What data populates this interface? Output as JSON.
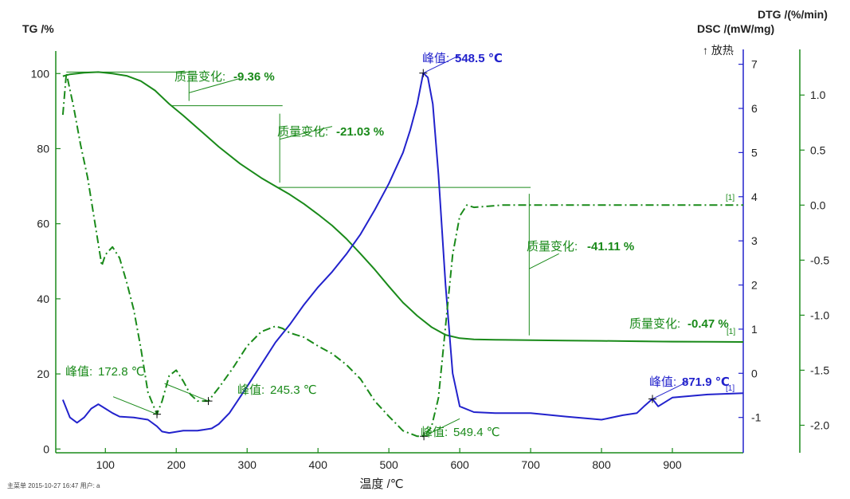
{
  "chart_data": {
    "type": "line",
    "title": "",
    "xlabel": "温度 /℃",
    "xlim": [
      30,
      1000
    ],
    "xticks": [
      100,
      200,
      300,
      400,
      500,
      600,
      700,
      800,
      900
    ],
    "y_left": {
      "label": "TG /%",
      "lim": [
        -1,
        106
      ],
      "ticks": [
        0,
        20,
        40,
        60,
        80,
        100
      ]
    },
    "y_dsc": {
      "label": "DSC /(mW/mg)",
      "exo_label": "↑ 放热",
      "lim": [
        -1.8,
        7.3
      ],
      "ticks": [
        -1,
        0,
        1,
        2,
        3,
        4,
        5,
        6,
        7
      ]
    },
    "y_dtg": {
      "label": "DTG /(%/min)",
      "lim": [
        -2.25,
        1.4
      ],
      "ticks": [
        "1.0",
        "0.5",
        "0.0",
        "-0.5",
        "-1.0",
        "-1.5",
        "-2.0"
      ]
    },
    "series": [
      {
        "axis": "tg",
        "color": "#1a8a1a",
        "style": "solid",
        "x": [
          40,
          50,
          70,
          90,
          110,
          130,
          150,
          170,
          190,
          210,
          230,
          260,
          290,
          320,
          340,
          360,
          380,
          400,
          420,
          440,
          460,
          480,
          500,
          520,
          540,
          560,
          580,
          600,
          620,
          650,
          700,
          750,
          800,
          850,
          900,
          1000
        ],
        "y": [
          99.3,
          99.8,
          100.2,
          100.4,
          100.0,
          99.4,
          98.0,
          95.5,
          91.9,
          88.8,
          85.5,
          80.5,
          76.0,
          72.2,
          70.0,
          67.8,
          65.3,
          62.5,
          59.5,
          56.0,
          52.0,
          47.8,
          43.3,
          39.0,
          35.5,
          32.5,
          30.4,
          29.5,
          29.2,
          29.1,
          29.0,
          28.9,
          28.8,
          28.7,
          28.6,
          28.5
        ]
      },
      {
        "axis": "dsc",
        "color": "#2222cc",
        "style": "solid",
        "x": [
          40,
          50,
          60,
          70,
          80,
          90,
          100,
          110,
          120,
          140,
          160,
          172.8,
          180,
          190,
          210,
          230,
          250,
          260,
          275,
          300,
          320,
          340,
          360,
          380,
          400,
          420,
          440,
          460,
          480,
          500,
          520,
          530,
          540,
          548.5,
          555,
          562,
          570,
          580,
          590,
          600,
          620,
          650,
          700,
          750,
          800,
          830,
          850,
          860,
          871.9,
          880,
          900,
          950,
          1000
        ],
        "y": [
          -0.6,
          -1.0,
          -1.12,
          -1.0,
          -0.8,
          -0.7,
          -0.8,
          -0.9,
          -0.98,
          -1.0,
          -1.05,
          -1.2,
          -1.32,
          -1.35,
          -1.3,
          -1.3,
          -1.25,
          -1.15,
          -0.9,
          -0.3,
          0.2,
          0.7,
          1.1,
          1.55,
          1.95,
          2.3,
          2.7,
          3.15,
          3.7,
          4.3,
          5.0,
          5.5,
          6.1,
          6.8,
          6.7,
          6.1,
          4.5,
          2.0,
          0.0,
          -0.75,
          -0.88,
          -0.9,
          -0.9,
          -0.98,
          -1.05,
          -0.95,
          -0.9,
          -0.75,
          -0.58,
          -0.75,
          -0.55,
          -0.48,
          -0.45
        ]
      },
      {
        "axis": "dtg",
        "color": "#1a8a1a",
        "style": "dashdot",
        "x": [
          40,
          45,
          55,
          65,
          75,
          85,
          95,
          100,
          110,
          120,
          130,
          140,
          150,
          160,
          172.8,
          180,
          190,
          200,
          210,
          220,
          230,
          245.3,
          260,
          280,
          300,
          320,
          340,
          350,
          360,
          370,
          380,
          400,
          420,
          440,
          460,
          480,
          500,
          520,
          540,
          549.4,
          560,
          570,
          580,
          590,
          600,
          610,
          620,
          640,
          660,
          700,
          750,
          800,
          850,
          900,
          950,
          1000
        ],
        "y": [
          0.82,
          1.2,
          0.9,
          0.55,
          0.25,
          -0.15,
          -0.55,
          -0.45,
          -0.38,
          -0.48,
          -0.7,
          -0.95,
          -1.3,
          -1.7,
          -1.9,
          -1.78,
          -1.55,
          -1.5,
          -1.6,
          -1.72,
          -1.78,
          -1.78,
          -1.66,
          -1.48,
          -1.28,
          -1.15,
          -1.1,
          -1.12,
          -1.16,
          -1.18,
          -1.2,
          -1.28,
          -1.35,
          -1.45,
          -1.58,
          -1.78,
          -1.92,
          -2.05,
          -2.1,
          -2.1,
          -2.02,
          -1.75,
          -1.1,
          -0.45,
          -0.1,
          0.0,
          -0.02,
          -0.01,
          0.0,
          0.0,
          0.0,
          0.0,
          0.0,
          0.0,
          0.0,
          0.0
        ]
      }
    ],
    "annotations": {
      "tg_changes": [
        {
          "label": "质量变化:",
          "value": "-9.36 %"
        },
        {
          "label": "质量变化:",
          "value": "-21.03 %"
        },
        {
          "label": "质量变化:",
          "value": "-41.11 %"
        },
        {
          "label": "质量变化:",
          "value": "-0.47 %"
        }
      ],
      "peaks": [
        {
          "label": "峰值:",
          "value": "172.8 ℃",
          "x": 172.8,
          "axis": "dtg"
        },
        {
          "label": "峰值:",
          "value": "245.3 ℃",
          "x": 245.3,
          "axis": "dtg"
        },
        {
          "label": "峰值:",
          "value": "549.4 ℃",
          "x": 549.4,
          "axis": "dtg"
        },
        {
          "label": "峰值:",
          "value": "548.5 ℃",
          "x": 548.5,
          "axis": "dsc"
        },
        {
          "label": "峰值:",
          "value": "871.9 ℃",
          "x": 871.9,
          "axis": "dsc"
        }
      ],
      "end_marker": "[1]"
    },
    "footer": "主菜单  2015-10-27 16:47  用户: a"
  }
}
